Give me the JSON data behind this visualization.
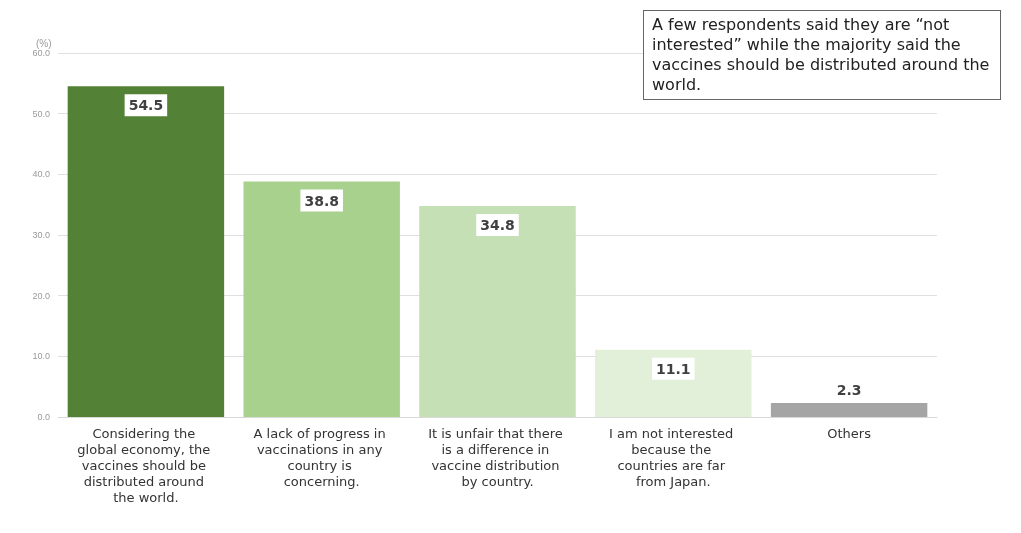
{
  "chart_data": {
    "type": "bar",
    "ylabel": "(%)",
    "categories": [
      "Considering the global economy, the vaccines should be distributed around the world.",
      "A lack of progress in vaccinations in any country is concerning.",
      "It is unfair that there is a difference in vaccine distribution by country.",
      "I am not interested because the countries are far from Japan.",
      "Others"
    ],
    "values": [
      54.5,
      38.8,
      34.8,
      11.1,
      2.3
    ],
    "colors": [
      "#538135",
      "#a9d18e",
      "#c5e0b4",
      "#e2f0d9",
      "#a5a5a5"
    ],
    "ylim": [
      0,
      60
    ],
    "yticks": [
      {
        "value": 0,
        "label": "0.0"
      },
      {
        "value": 10,
        "label": "10.0"
      },
      {
        "value": 20,
        "label": "20.0"
      },
      {
        "value": 30,
        "label": "30.0"
      },
      {
        "value": 40,
        "label": "40.0"
      },
      {
        "value": 50,
        "label": "50.0"
      },
      {
        "value": 60,
        "label": "60.0"
      }
    ],
    "grid": "y",
    "data_labels": true,
    "annotations": [
      "A few respondents said they are “not interested” while the majority said the vaccines should be distributed around the world."
    ]
  }
}
